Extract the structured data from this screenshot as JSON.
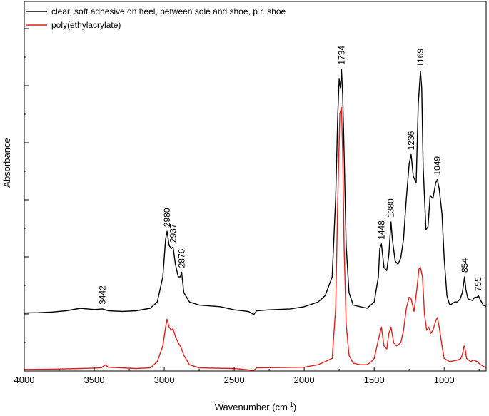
{
  "chart_data": {
    "type": "line",
    "xlabel": "Wavenumber (cm",
    "xlabel_sup": "-1",
    "xlabel_close": ")",
    "ylabel": "Absorbance",
    "xlim": [
      4000,
      700
    ],
    "x_reversed": true,
    "x_ticks": [
      4000,
      3500,
      3000,
      2500,
      2000,
      1500,
      1000
    ],
    "y_ticks_labeled": false,
    "legend_position": "top-left",
    "series": [
      {
        "name": "clear, soft adhesive on heel, between sole and shoe, p.r. shoe",
        "color": "#000000",
        "points": [
          [
            4000,
            0.185
          ],
          [
            3900,
            0.186
          ],
          [
            3800,
            0.188
          ],
          [
            3700,
            0.192
          ],
          [
            3600,
            0.2
          ],
          [
            3500,
            0.196
          ],
          [
            3442,
            0.198
          ],
          [
            3400,
            0.192
          ],
          [
            3300,
            0.19
          ],
          [
            3200,
            0.192
          ],
          [
            3100,
            0.2
          ],
          [
            3050,
            0.22
          ],
          [
            3010,
            0.3
          ],
          [
            2990,
            0.42
          ],
          [
            2980,
            0.445
          ],
          [
            2965,
            0.4
          ],
          [
            2950,
            0.39
          ],
          [
            2937,
            0.395
          ],
          [
            2920,
            0.34
          ],
          [
            2900,
            0.3
          ],
          [
            2885,
            0.3
          ],
          [
            2876,
            0.315
          ],
          [
            2860,
            0.25
          ],
          [
            2820,
            0.22
          ],
          [
            2750,
            0.21
          ],
          [
            2600,
            0.205
          ],
          [
            2500,
            0.195
          ],
          [
            2400,
            0.19
          ],
          [
            2360,
            0.18
          ],
          [
            2340,
            0.192
          ],
          [
            2250,
            0.195
          ],
          [
            2100,
            0.198
          ],
          [
            2000,
            0.205
          ],
          [
            1900,
            0.22
          ],
          [
            1850,
            0.24
          ],
          [
            1800,
            0.3
          ],
          [
            1775,
            0.55
          ],
          [
            1760,
            0.82
          ],
          [
            1750,
            0.93
          ],
          [
            1740,
            0.9
          ],
          [
            1734,
            0.962
          ],
          [
            1725,
            0.88
          ],
          [
            1715,
            0.7
          ],
          [
            1700,
            0.4
          ],
          [
            1680,
            0.25
          ],
          [
            1650,
            0.21
          ],
          [
            1600,
            0.205
          ],
          [
            1550,
            0.2
          ],
          [
            1500,
            0.22
          ],
          [
            1470,
            0.3
          ],
          [
            1460,
            0.39
          ],
          [
            1448,
            0.405
          ],
          [
            1430,
            0.33
          ],
          [
            1410,
            0.32
          ],
          [
            1395,
            0.37
          ],
          [
            1380,
            0.475
          ],
          [
            1370,
            0.42
          ],
          [
            1350,
            0.35
          ],
          [
            1330,
            0.34
          ],
          [
            1310,
            0.36
          ],
          [
            1290,
            0.42
          ],
          [
            1270,
            0.55
          ],
          [
            1250,
            0.66
          ],
          [
            1236,
            0.69
          ],
          [
            1220,
            0.62
          ],
          [
            1200,
            0.6
          ],
          [
            1185,
            0.85
          ],
          [
            1169,
            0.955
          ],
          [
            1160,
            0.9
          ],
          [
            1150,
            0.65
          ],
          [
            1130,
            0.45
          ],
          [
            1115,
            0.46
          ],
          [
            1100,
            0.56
          ],
          [
            1080,
            0.55
          ],
          [
            1060,
            0.6
          ],
          [
            1049,
            0.61
          ],
          [
            1035,
            0.58
          ],
          [
            1015,
            0.5
          ],
          [
            1000,
            0.36
          ],
          [
            980,
            0.24
          ],
          [
            960,
            0.21
          ],
          [
            940,
            0.215
          ],
          [
            925,
            0.22
          ],
          [
            905,
            0.22
          ],
          [
            885,
            0.23
          ],
          [
            870,
            0.25
          ],
          [
            860,
            0.28
          ],
          [
            854,
            0.3
          ],
          [
            845,
            0.26
          ],
          [
            830,
            0.23
          ],
          [
            800,
            0.225
          ],
          [
            780,
            0.235
          ],
          [
            765,
            0.235
          ],
          [
            755,
            0.24
          ],
          [
            740,
            0.225
          ],
          [
            720,
            0.21
          ],
          [
            700,
            0.205
          ]
        ],
        "annotations": [
          {
            "x": 3442,
            "label": "3442"
          },
          {
            "x": 2980,
            "label": "2980"
          },
          {
            "x": 2937,
            "label": "2937"
          },
          {
            "x": 2876,
            "label": "2876"
          },
          {
            "x": 1734,
            "label": "1734"
          },
          {
            "x": 1448,
            "label": "1448"
          },
          {
            "x": 1380,
            "label": "1380"
          },
          {
            "x": 1236,
            "label": "1236"
          },
          {
            "x": 1169,
            "label": "1169"
          },
          {
            "x": 1049,
            "label": "1049"
          },
          {
            "x": 854,
            "label": "854"
          },
          {
            "x": 755,
            "label": "755"
          }
        ]
      },
      {
        "name": "poly(ethylacrylate)",
        "color": "#e0201c",
        "points": [
          [
            4000,
            0.005
          ],
          [
            3800,
            0.006
          ],
          [
            3600,
            0.008
          ],
          [
            3450,
            0.01
          ],
          [
            3420,
            0.02
          ],
          [
            3400,
            0.012
          ],
          [
            3200,
            0.008
          ],
          [
            3100,
            0.01
          ],
          [
            3050,
            0.03
          ],
          [
            3010,
            0.08
          ],
          [
            2990,
            0.14
          ],
          [
            2980,
            0.165
          ],
          [
            2965,
            0.14
          ],
          [
            2950,
            0.13
          ],
          [
            2937,
            0.135
          ],
          [
            2920,
            0.11
          ],
          [
            2900,
            0.09
          ],
          [
            2880,
            0.075
          ],
          [
            2860,
            0.05
          ],
          [
            2820,
            0.02
          ],
          [
            2750,
            0.01
          ],
          [
            2500,
            0.008
          ],
          [
            2360,
            0.002
          ],
          [
            2340,
            0.01
          ],
          [
            2000,
            0.012
          ],
          [
            1900,
            0.02
          ],
          [
            1800,
            0.04
          ],
          [
            1775,
            0.2
          ],
          [
            1760,
            0.55
          ],
          [
            1745,
            0.82
          ],
          [
            1734,
            0.84
          ],
          [
            1725,
            0.7
          ],
          [
            1715,
            0.4
          ],
          [
            1700,
            0.15
          ],
          [
            1680,
            0.05
          ],
          [
            1650,
            0.025
          ],
          [
            1600,
            0.02
          ],
          [
            1550,
            0.02
          ],
          [
            1520,
            0.03
          ],
          [
            1500,
            0.04
          ],
          [
            1470,
            0.1
          ],
          [
            1448,
            0.14
          ],
          [
            1430,
            0.08
          ],
          [
            1410,
            0.07
          ],
          [
            1395,
            0.12
          ],
          [
            1380,
            0.14
          ],
          [
            1360,
            0.09
          ],
          [
            1340,
            0.08
          ],
          [
            1310,
            0.09
          ],
          [
            1290,
            0.13
          ],
          [
            1270,
            0.2
          ],
          [
            1250,
            0.235
          ],
          [
            1236,
            0.23
          ],
          [
            1215,
            0.19
          ],
          [
            1195,
            0.26
          ],
          [
            1180,
            0.325
          ],
          [
            1169,
            0.33
          ],
          [
            1155,
            0.3
          ],
          [
            1140,
            0.18
          ],
          [
            1125,
            0.13
          ],
          [
            1110,
            0.14
          ],
          [
            1095,
            0.12
          ],
          [
            1080,
            0.13
          ],
          [
            1060,
            0.16
          ],
          [
            1049,
            0.17
          ],
          [
            1035,
            0.14
          ],
          [
            1015,
            0.08
          ],
          [
            1000,
            0.04
          ],
          [
            960,
            0.03
          ],
          [
            900,
            0.035
          ],
          [
            880,
            0.04
          ],
          [
            865,
            0.06
          ],
          [
            858,
            0.08
          ],
          [
            850,
            0.07
          ],
          [
            840,
            0.04
          ],
          [
            810,
            0.03
          ],
          [
            790,
            0.035
          ],
          [
            765,
            0.03
          ],
          [
            740,
            0.02
          ],
          [
            700,
            0.01
          ]
        ]
      }
    ]
  }
}
